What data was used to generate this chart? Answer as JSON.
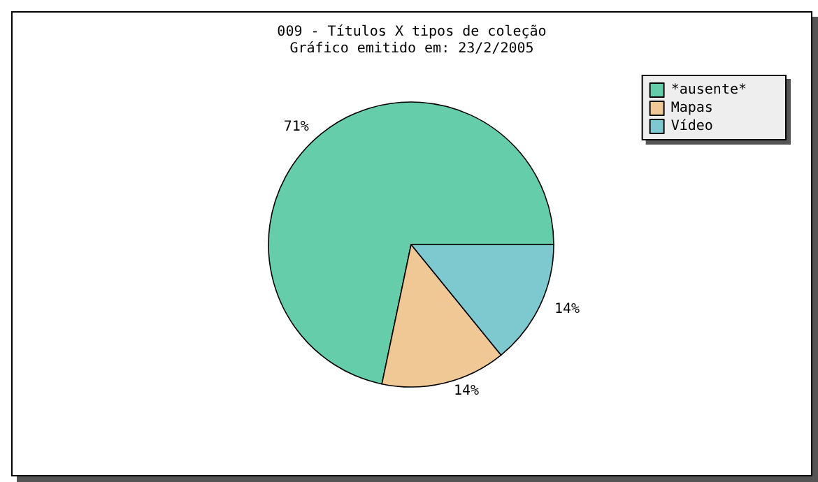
{
  "chart_data": {
    "type": "pie",
    "title": "009 - Títulos X tipos de coleção",
    "subtitle": "Gráfico emitido em: 23/2/2005",
    "categories": [
      "*ausente*",
      "Mapas",
      "Vídeo"
    ],
    "values": [
      71,
      14,
      14
    ],
    "value_labels": [
      "71%",
      "14%",
      "14%"
    ],
    "colors": [
      "#66cdaa",
      "#f0c896",
      "#7ec8d0"
    ],
    "legend": "top right"
  }
}
